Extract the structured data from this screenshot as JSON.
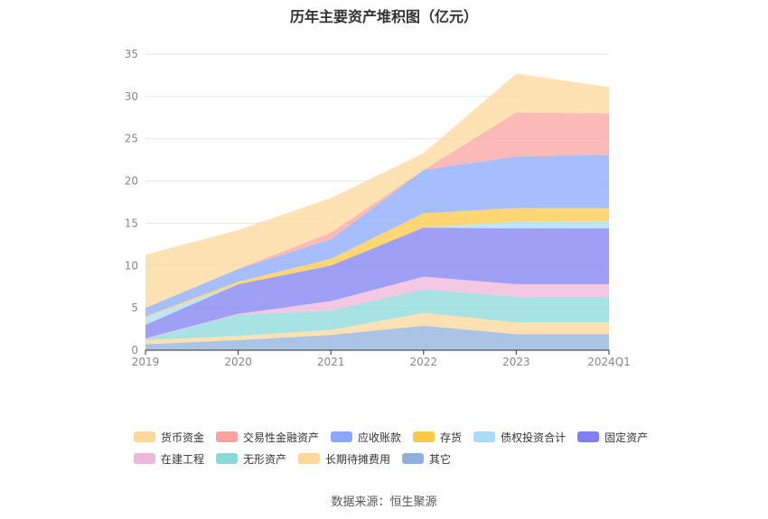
{
  "chart_data": {
    "type": "area",
    "stacked": true,
    "title": "历年主要资产堆积图（亿元）",
    "categories": [
      "2019",
      "2020",
      "2021",
      "2022",
      "2023",
      "2024Q1"
    ],
    "ylim": [
      0,
      35
    ],
    "yticks": [
      0,
      5,
      10,
      15,
      20,
      25,
      30,
      35
    ],
    "grid": true,
    "legend_position": "bottom",
    "series": [
      {
        "name": "其它",
        "color": "#8fb0dc",
        "values": [
          0.7,
          1.2,
          1.8,
          2.9,
          1.9,
          1.9
        ]
      },
      {
        "name": "长期待摊费用",
        "color": "#fdd79a",
        "values": [
          0.5,
          0.5,
          0.6,
          1.5,
          1.4,
          1.4
        ]
      },
      {
        "name": "无形资产",
        "color": "#8ad9d9",
        "values": [
          0.1,
          2.5,
          2.3,
          2.8,
          3.0,
          3.0
        ]
      },
      {
        "name": "在建工程",
        "color": "#edb6da",
        "values": [
          0.1,
          0.1,
          1.1,
          1.5,
          1.5,
          1.5
        ]
      },
      {
        "name": "固定资产",
        "color": "#7f7ff2",
        "values": [
          1.6,
          3.5,
          4.2,
          5.8,
          6.6,
          6.6
        ]
      },
      {
        "name": "债权投资合计",
        "color": "#a8dcf7",
        "values": [
          0.9,
          0.0,
          0.0,
          0.0,
          0.8,
          0.9
        ]
      },
      {
        "name": "存货",
        "color": "#fdc946",
        "values": [
          0.1,
          0.3,
          0.8,
          1.7,
          1.6,
          1.5
        ]
      },
      {
        "name": "应收账款",
        "color": "#8aa8fb",
        "values": [
          1.0,
          1.5,
          2.3,
          5.1,
          6.1,
          6.3
        ]
      },
      {
        "name": "交易性金融资产",
        "color": "#faa2a0",
        "values": [
          0.0,
          0.0,
          0.8,
          0.0,
          5.2,
          4.9
        ]
      },
      {
        "name": "货币资金",
        "color": "#fdd89b",
        "values": [
          6.3,
          4.6,
          4.1,
          2.0,
          4.6,
          3.1
        ]
      }
    ]
  },
  "legend": {
    "rows": [
      [
        {
          "label": "货币资金",
          "color": "#fdd89b"
        },
        {
          "label": "交易性金融资产",
          "color": "#faa2a0"
        },
        {
          "label": "应收账款",
          "color": "#8aa8fb"
        },
        {
          "label": "存货",
          "color": "#fdc946"
        },
        {
          "label": "债权投资合计",
          "color": "#a8dcf7"
        },
        {
          "label": "固定资产",
          "color": "#7f7ff2"
        }
      ],
      [
        {
          "label": "在建工程",
          "color": "#edb6da"
        },
        {
          "label": "无形资产",
          "color": "#8ad9d9"
        },
        {
          "label": "长期待摊费用",
          "color": "#fdd79a"
        },
        {
          "label": "其它",
          "color": "#8fb0dc"
        }
      ]
    ]
  },
  "source": "数据来源：恒生聚源"
}
